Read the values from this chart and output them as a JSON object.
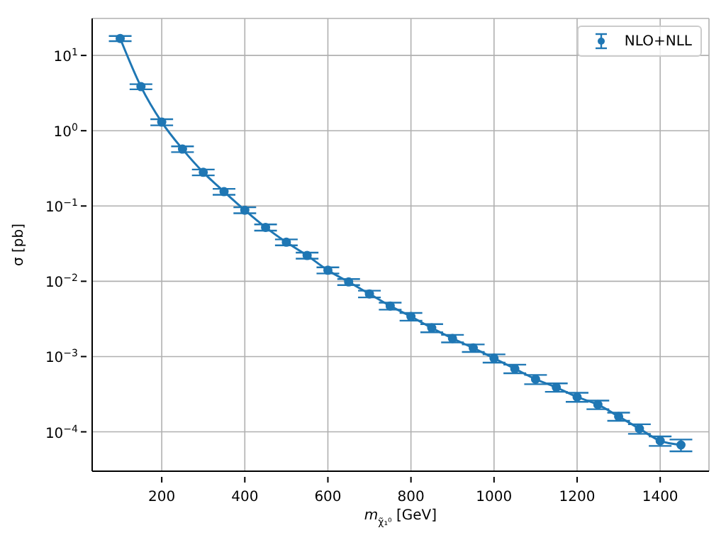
{
  "chart_data": {
    "type": "line",
    "xlabel": "m$_{χ̃₁⁰}$ [GeV]",
    "ylabel": "σ [pb]",
    "x": [
      100,
      150,
      200,
      250,
      300,
      350,
      400,
      450,
      500,
      550,
      600,
      650,
      700,
      750,
      800,
      850,
      900,
      950,
      1000,
      1050,
      1100,
      1150,
      1200,
      1250,
      1300,
      1350,
      1400,
      1450
    ],
    "series": [
      {
        "name": "NLO+NLL",
        "color": "#1f77b4",
        "values": [
          16.8,
          3.85,
          1.3,
          0.57,
          0.28,
          0.155,
          0.088,
          0.052,
          0.033,
          0.022,
          0.014,
          0.0098,
          0.0068,
          0.0047,
          0.0034,
          0.0024,
          0.00174,
          0.0013,
          0.00095,
          0.00069,
          0.0005,
          0.00039,
          0.00029,
          0.00023,
          0.00016,
          0.00011,
          7.6e-05,
          6.7e-05
        ],
        "errors": [
          1.3,
          0.3,
          0.12,
          0.05,
          0.025,
          0.014,
          0.008,
          0.005,
          0.003,
          0.002,
          0.0013,
          0.0009,
          0.0007,
          0.0005,
          0.0004,
          0.0003,
          0.0002,
          0.00015,
          0.00012,
          9e-05,
          7e-05,
          5e-05,
          4e-05,
          3e-05,
          2e-05,
          1.6e-05,
          1.1e-05,
          1.2e-05
        ]
      }
    ],
    "log": "y",
    "marker": "circle",
    "line_style": "solid",
    "grid": true,
    "legend": "top right",
    "xlim": [
      32.5,
      1517.5
    ],
    "xticks": [
      200,
      400,
      600,
      800,
      1000,
      1200,
      1400
    ],
    "ylim": [
      3e-05,
      31
    ],
    "yticks": [
      {
        "value": 0.0001,
        "label": "10$^{−4}$"
      },
      {
        "value": 0.001,
        "label": "10$^{−3}$"
      },
      {
        "value": 0.01,
        "label": "10$^{−2}$"
      },
      {
        "value": 0.1,
        "label": "10$^{−1}$"
      },
      {
        "value": 1,
        "label": "10$^{0}$"
      },
      {
        "value": 10,
        "label": "10$^{1}$"
      }
    ]
  }
}
